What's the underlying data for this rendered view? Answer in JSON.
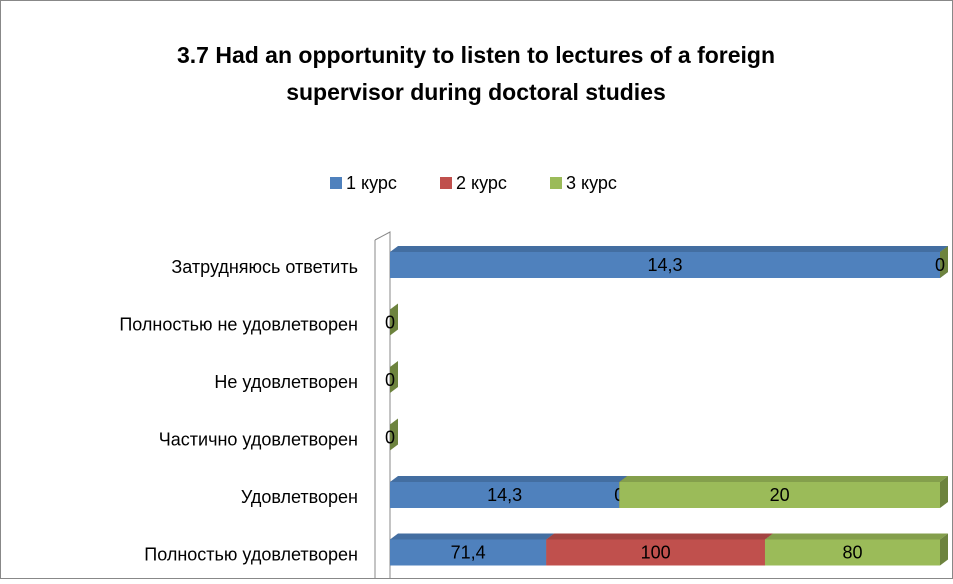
{
  "chart_data": {
    "type": "bar",
    "stacked": "percent",
    "title": [
      "3.7 Had an opportunity to listen to lectures of a foreign",
      "supervisor during doctoral studies"
    ],
    "categories": [
      "Затрудняюсь ответить",
      "Полностью не удовлетворен",
      "Не удовлетворен",
      "Частично удовлетворен",
      "Удовлетворен",
      "Полностью удовлетворен"
    ],
    "series": [
      {
        "name": "1 курс",
        "color": "#4f81bd",
        "values": [
          14.3,
          null,
          null,
          null,
          14.3,
          71.4
        ],
        "value_labels": [
          "14,3",
          null,
          null,
          null,
          "14,3",
          "71,4"
        ]
      },
      {
        "name": "2 курс",
        "color": "#c0504d",
        "values": [
          null,
          null,
          null,
          null,
          0,
          100
        ]
      },
      {
        "name": "3 курс",
        "color": "#9bbb59",
        "values": [
          0,
          0,
          0,
          0,
          20,
          80
        ]
      }
    ]
  }
}
